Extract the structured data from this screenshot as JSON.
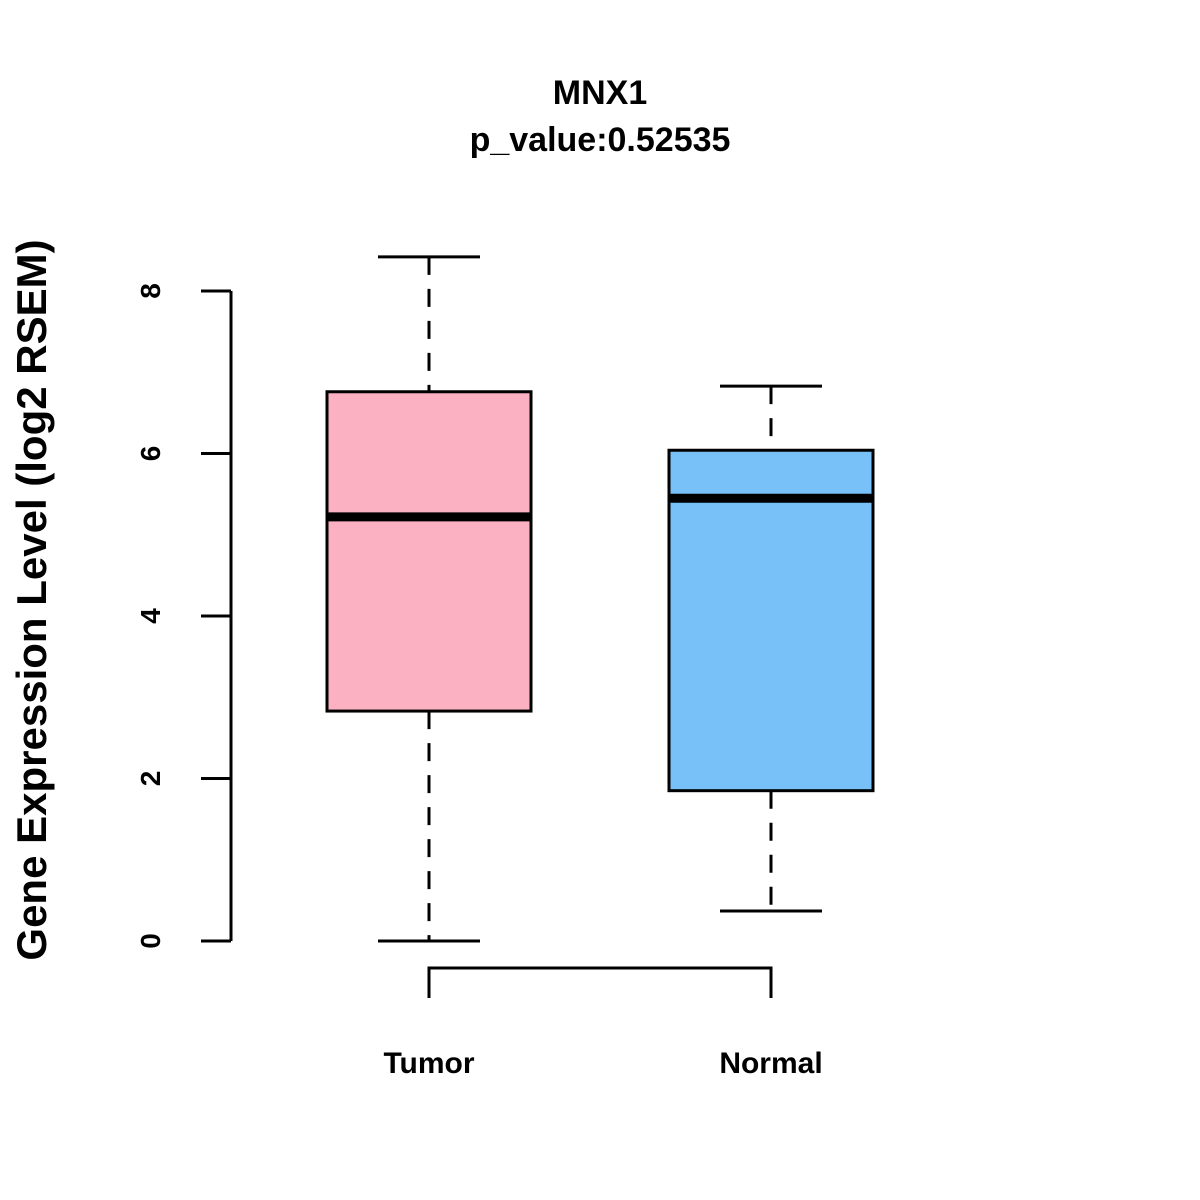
{
  "chart_data": {
    "type": "boxplot",
    "title": "MNX1",
    "subtitle": "p_value:0.52535",
    "xlabel": "",
    "ylabel": "Gene Expression Level (log2 RSEM)",
    "ylim": [
      0,
      8.4
    ],
    "yticks": [
      "0",
      "2",
      "4",
      "6",
      "8"
    ],
    "grid": false,
    "categories": [
      "Tumor",
      "Normal"
    ],
    "boxes": [
      {
        "name": "Tumor",
        "color": "#FBB1C2",
        "whisker_low": 0,
        "q1": 2.83,
        "median": 5.22,
        "q3": 6.76,
        "whisker_high": 8.42
      },
      {
        "name": "Normal",
        "color": "#78C0F8",
        "whisker_low": 0.37,
        "q1": 1.85,
        "median": 5.45,
        "q3": 6.04,
        "whisker_high": 6.83
      }
    ],
    "comparison_bracket": [
      "Tumor",
      "Normal"
    ]
  }
}
